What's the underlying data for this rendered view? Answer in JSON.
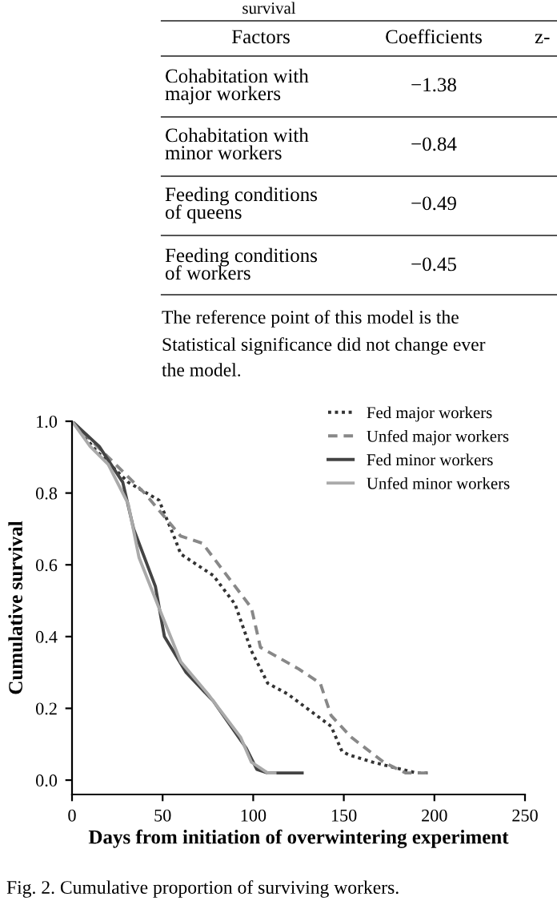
{
  "chart_data": {
    "type": "line",
    "xlabel": "Days from initiation of overwintering experiment",
    "ylabel": "Cumulative survival",
    "xlim": [
      0,
      250
    ],
    "xticks": [
      0,
      50,
      100,
      150,
      200,
      250
    ],
    "ylim": [
      -0.04,
      1.0
    ],
    "yticks": [
      {
        "value": 0,
        "label": "0.0"
      },
      {
        "value": 0.2,
        "label": "0.2"
      },
      {
        "value": 0.4,
        "label": "0.4"
      },
      {
        "value": 0.6,
        "label": "0.6"
      },
      {
        "value": 0.8,
        "label": "0.8"
      },
      {
        "value": 1.0,
        "label": "1.0"
      }
    ],
    "grid": false,
    "legend": "top right",
    "marker": "none",
    "series": [
      {
        "name": "Fed major workers",
        "color": "#333333",
        "line_style": "dotted",
        "x": [
          0,
          13,
          31,
          48,
          57,
          60,
          78,
          90,
          99,
          108,
          119,
          143,
          149,
          153,
          166,
          190,
          197
        ],
        "values": [
          1.0,
          0.92,
          0.83,
          0.78,
          0.67,
          0.63,
          0.57,
          0.49,
          0.36,
          0.27,
          0.24,
          0.15,
          0.08,
          0.07,
          0.05,
          0.02,
          0.02
        ]
      },
      {
        "name": "Unfed major workers",
        "color": "#888888",
        "line_style": "dashed",
        "x": [
          0,
          20,
          40,
          60,
          72,
          84,
          99,
          104,
          125,
          137,
          143,
          154,
          172,
          184,
          197
        ],
        "values": [
          1.0,
          0.9,
          0.8,
          0.68,
          0.66,
          0.58,
          0.48,
          0.37,
          0.31,
          0.27,
          0.18,
          0.12,
          0.05,
          0.02,
          0.02
        ]
      },
      {
        "name": "Fed minor workers",
        "color": "#444444",
        "line_style": "solid",
        "x": [
          0,
          15,
          28,
          34,
          46,
          51,
          63,
          78,
          96,
          102,
          108,
          127
        ],
        "values": [
          1.0,
          0.93,
          0.83,
          0.7,
          0.54,
          0.4,
          0.3,
          0.22,
          0.09,
          0.03,
          0.02,
          0.02
        ]
      },
      {
        "name": "Unfed minor workers",
        "color": "#aaaaaa",
        "line_style": "solid",
        "x": [
          0,
          10,
          20,
          31,
          37,
          48,
          60,
          75,
          93,
          99,
          108,
          112
        ],
        "values": [
          1.0,
          0.93,
          0.88,
          0.77,
          0.62,
          0.48,
          0.33,
          0.24,
          0.12,
          0.05,
          0.02,
          0.02
        ]
      }
    ],
    "annotations": [
      "survival",
      "Factors",
      "Coefficients",
      "z-",
      "Cohabitation with\nmajor workers",
      "−1.38",
      "Cohabitation with\nminor workers",
      "−0.84",
      "Feeding conditions\nof queens",
      "−0.49",
      "Feeding conditions\nof workers",
      "−0.45",
      "The reference point of this model is the",
      "Statistical significance did not change ever",
      "the model.",
      "Fig. 2. Cumulative proportion of surviving workers."
    ]
  }
}
